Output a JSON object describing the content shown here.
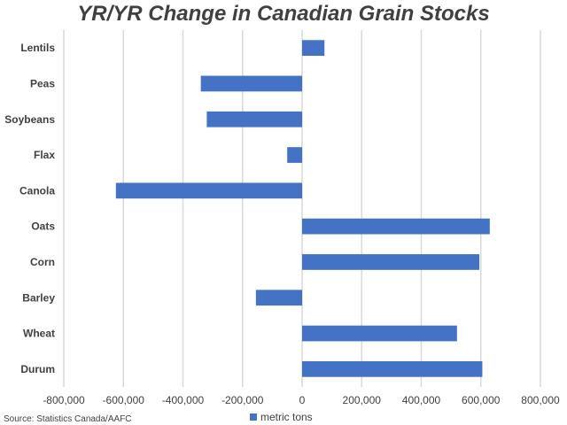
{
  "chart_data": {
    "type": "bar",
    "orientation": "horizontal",
    "title": "YR/YR Change in Canadian Grain Stocks",
    "categories": [
      "Lentils",
      "Peas",
      "Soybeans",
      "Flax",
      "Canola",
      "Oats",
      "Corn",
      "Barley",
      "Wheat",
      "Durum"
    ],
    "series": [
      {
        "name": "metric tons",
        "color": "#4472c4",
        "values": [
          75000,
          -340000,
          -320000,
          -50000,
          -625000,
          630000,
          595000,
          -155000,
          520000,
          605000
        ]
      }
    ],
    "xlim": [
      -800000,
      800000
    ],
    "xticks": [
      "-800,000",
      "-600,000",
      "-400,000",
      "-200,000",
      "0",
      "200,000",
      "400,000",
      "600,000",
      "800,000"
    ],
    "xtick_values": [
      -800000,
      -600000,
      -400000,
      -200000,
      0,
      200000,
      400000,
      600000,
      800000
    ],
    "grid": true,
    "legend_position": "bottom",
    "source": "Source: Statistics Canada/AAFC"
  }
}
